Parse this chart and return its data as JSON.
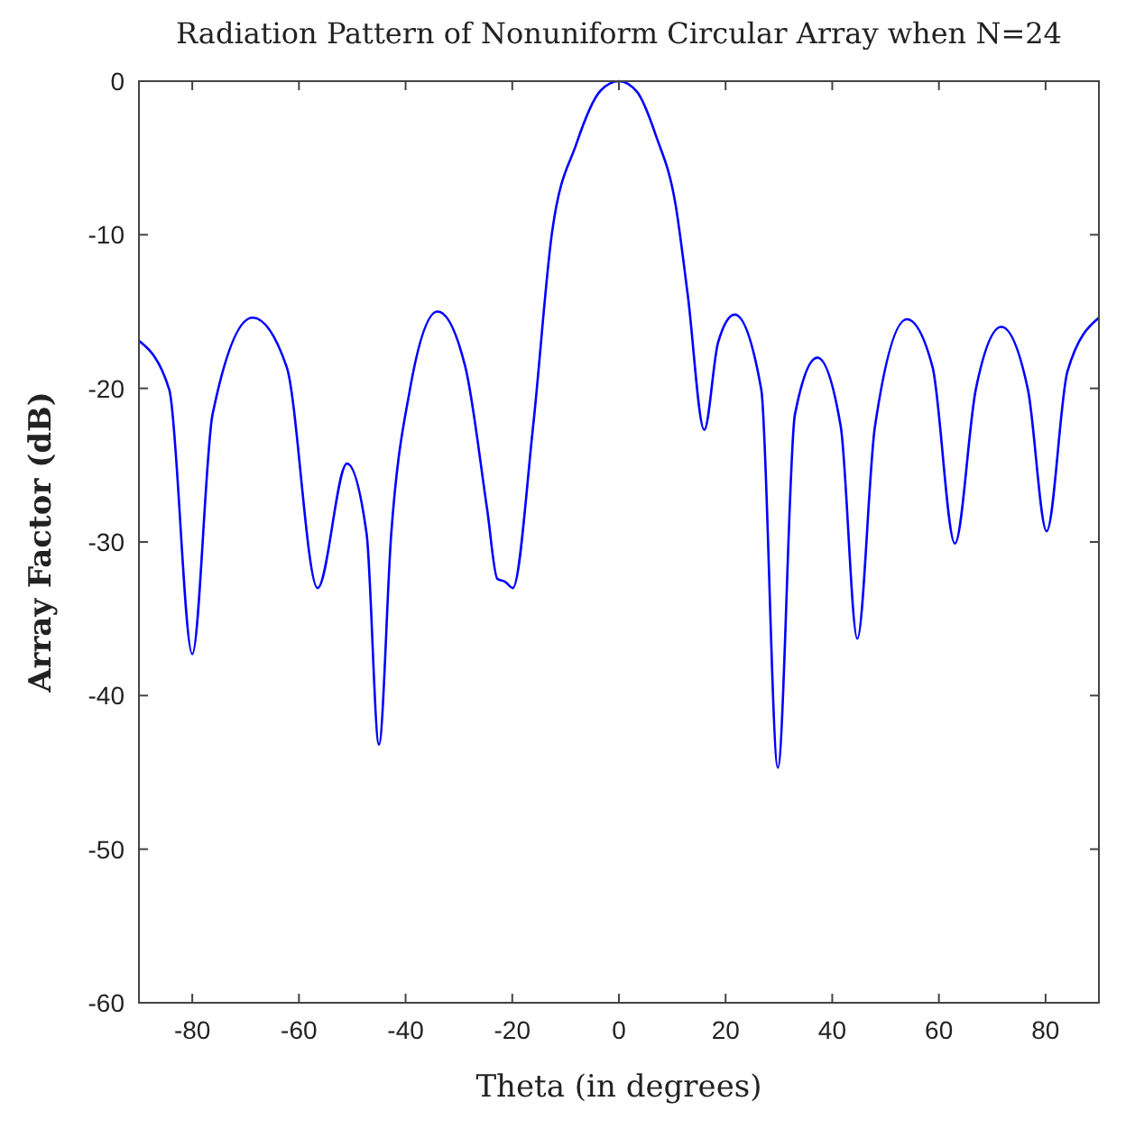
{
  "chart_data": {
    "type": "line",
    "title": "Radiation Pattern of Nonuniform Circular Array when N=24",
    "xlabel": "Theta (in degrees)",
    "ylabel": "Array Factor (dB)",
    "x": [
      -90,
      -84.3,
      -80,
      -76.2,
      -68.7,
      -62.3,
      -56.5,
      -51,
      -47.3,
      -45,
      -42.7,
      -39.2,
      -34,
      -28.8,
      -24.7,
      -22.8,
      -21.3,
      -19.9,
      -16.1,
      -12.6,
      -8,
      -3.4,
      0,
      3.4,
      7,
      10.6,
      12.9,
      16,
      18.6,
      21.7,
      26.7,
      29.8,
      33,
      37.2,
      41.6,
      44.7,
      48,
      54,
      58.8,
      63,
      66.9,
      71.7,
      76.7,
      80.2,
      84.1,
      90
    ],
    "series": [
      {
        "color": "#0000ff",
        "values": [
          -16.9,
          -20.1,
          -37.3,
          -21.7,
          -15.4,
          -18.6,
          -33,
          -24.9,
          -29.5,
          -43.2,
          -29.5,
          -20.1,
          -15,
          -18.6,
          -27.9,
          -32.4,
          -32.6,
          -33,
          -22.5,
          -10,
          -4.1,
          -0.6,
          0,
          -0.7,
          -3.6,
          -8,
          -13.9,
          -22.7,
          -17,
          -15.2,
          -20.1,
          -44.7,
          -21.7,
          -18,
          -22.5,
          -36.3,
          -22.5,
          -15.5,
          -18.6,
          -30.1,
          -20.1,
          -16,
          -20.1,
          -29.3,
          -18.9,
          -15.4
        ]
      }
    ],
    "xlim": [
      -90,
      90
    ],
    "xticks": [
      -80,
      -60,
      -40,
      -20,
      0,
      20,
      40,
      60,
      80
    ],
    "ylim": [
      -60,
      0
    ],
    "yticks": [
      -60,
      -50,
      -40,
      -30,
      -20,
      -10,
      0
    ],
    "grid": false,
    "line_style": "solid"
  }
}
